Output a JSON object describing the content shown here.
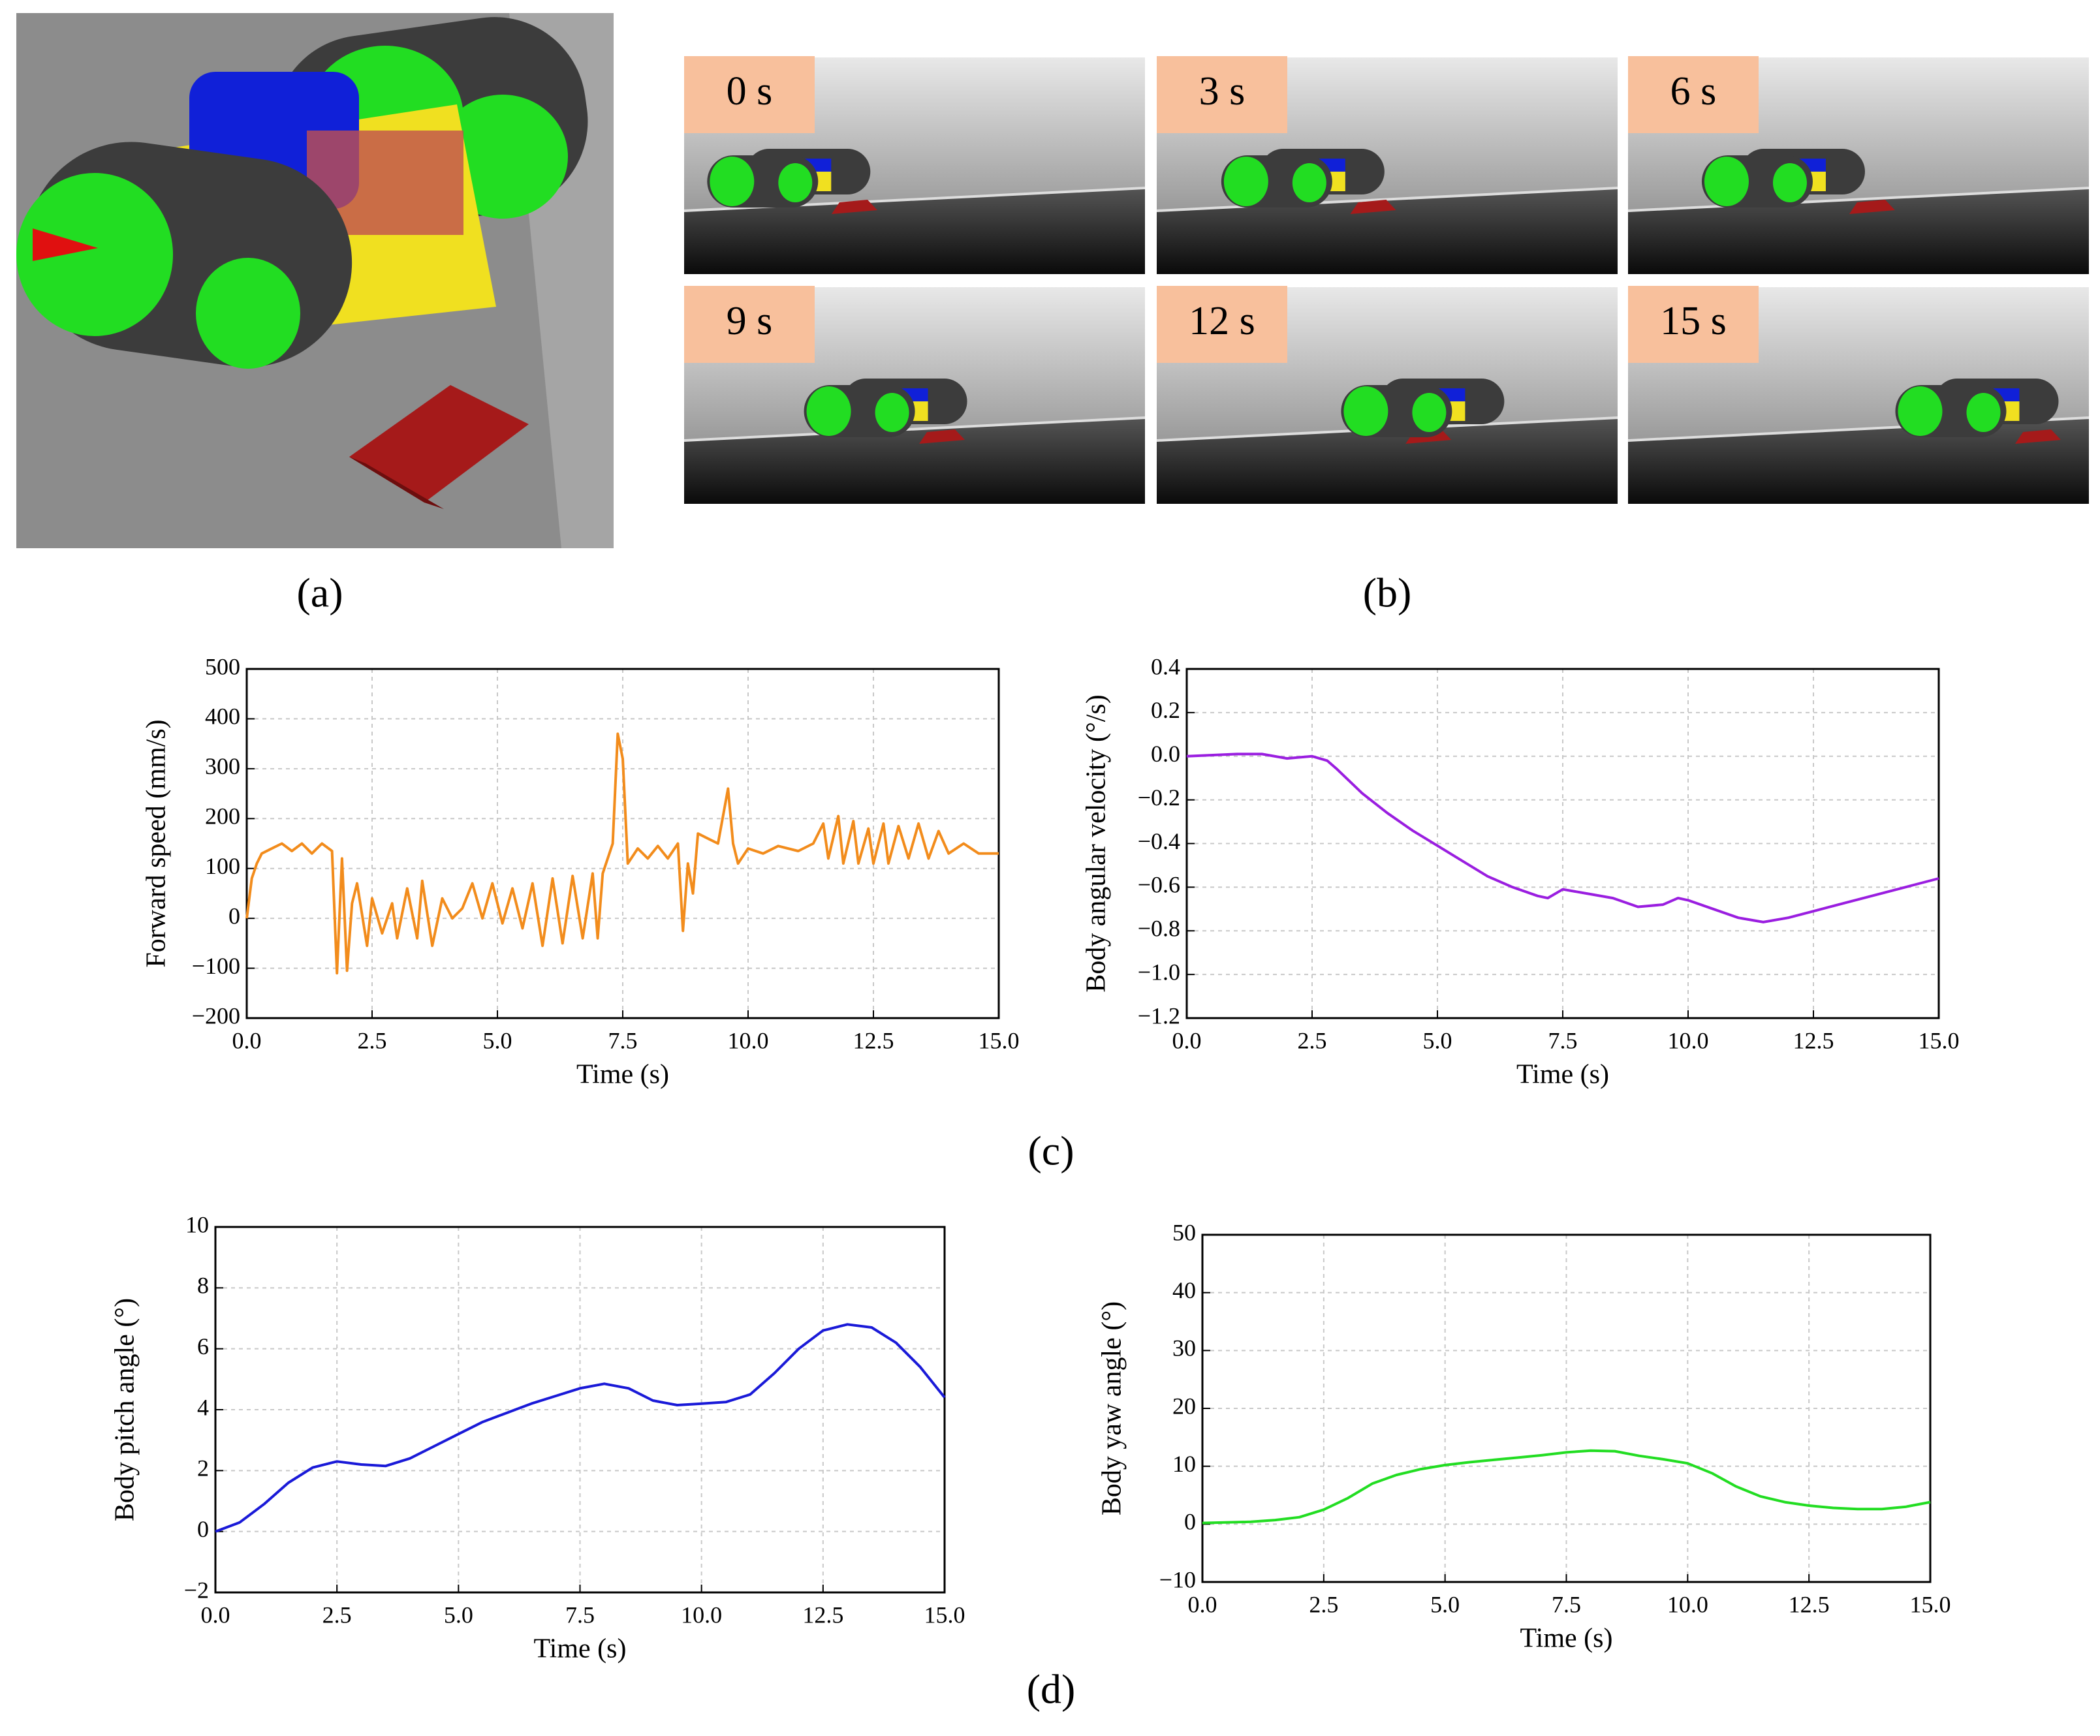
{
  "panel_labels": [
    "(a)",
    "(b)",
    "(c)",
    "(d)"
  ],
  "snapshots": [
    "0 s",
    "3 s",
    "6 s",
    "9 s",
    "12 s",
    "15 s"
  ],
  "chart_data": [
    {
      "type": "line",
      "xlabel": "Time (s)",
      "ylabel": "Forward speed (mm/s)",
      "xlim": [
        0,
        15
      ],
      "xticks": [
        {
          "value": 0,
          "label": "0.0"
        },
        2.5,
        {
          "value": 5,
          "label": "5.0"
        },
        7.5,
        {
          "value": 10,
          "label": "10.0"
        },
        12.5,
        {
          "value": 15,
          "label": "15.0"
        }
      ],
      "ylim": [
        -200,
        500
      ],
      "yticks": [
        {
          "value": -200,
          "label": "−200"
        },
        {
          "value": -100,
          "label": "−100"
        },
        0,
        100,
        200,
        300,
        400,
        500
      ],
      "grid": true,
      "x": [
        0,
        0.1,
        0.2,
        0.3,
        0.5,
        0.7,
        0.9,
        1.1,
        1.3,
        1.5,
        1.7,
        1.8,
        1.9,
        2.0,
        2.1,
        2.2,
        2.4,
        2.5,
        2.7,
        2.9,
        3.0,
        3.2,
        3.4,
        3.5,
        3.7,
        3.9,
        4.1,
        4.3,
        4.5,
        4.7,
        4.9,
        5.1,
        5.3,
        5.5,
        5.7,
        5.9,
        6.1,
        6.3,
        6.5,
        6.7,
        6.9,
        7.0,
        7.1,
        7.3,
        7.4,
        7.5,
        7.6,
        7.8,
        8.0,
        8.2,
        8.4,
        8.6,
        8.7,
        8.8,
        8.9,
        9.0,
        9.2,
        9.4,
        9.6,
        9.7,
        9.8,
        10.0,
        10.3,
        10.6,
        11.0,
        11.3,
        11.5,
        11.6,
        11.8,
        11.9,
        12.1,
        12.2,
        12.4,
        12.5,
        12.7,
        12.8,
        13.0,
        13.2,
        13.4,
        13.6,
        13.8,
        14.0,
        14.3,
        14.6,
        15.0
      ],
      "series": [
        {
          "color": "#f28c1c",
          "values": [
            0,
            80,
            110,
            130,
            140,
            150,
            135,
            150,
            130,
            150,
            135,
            -110,
            120,
            -105,
            30,
            70,
            -55,
            40,
            -30,
            30,
            -40,
            60,
            -40,
            75,
            -55,
            40,
            0,
            20,
            70,
            0,
            70,
            -10,
            60,
            -20,
            70,
            -55,
            80,
            -50,
            85,
            -40,
            90,
            -40,
            90,
            150,
            370,
            320,
            110,
            140,
            120,
            145,
            120,
            150,
            -25,
            110,
            50,
            170,
            160,
            150,
            260,
            150,
            110,
            140,
            130,
            145,
            135,
            150,
            190,
            120,
            205,
            110,
            195,
            110,
            180,
            110,
            190,
            110,
            185,
            120,
            190,
            120,
            175,
            130,
            150,
            130,
            130
          ]
        }
      ]
    },
    {
      "type": "line",
      "xlabel": "Time (s)",
      "ylabel": "Body angular velocity (°/s)",
      "xlim": [
        0,
        15
      ],
      "xticks": [
        {
          "value": 0,
          "label": "0.0"
        },
        2.5,
        {
          "value": 5,
          "label": "5.0"
        },
        7.5,
        {
          "value": 10,
          "label": "10.0"
        },
        12.5,
        {
          "value": 15,
          "label": "15.0"
        }
      ],
      "ylim": [
        -1.2,
        0.4
      ],
      "yticks": [
        {
          "value": -1.2,
          "label": "−1.2"
        },
        {
          "value": -1.0,
          "label": "−1.0"
        },
        {
          "value": -0.8,
          "label": "−0.8"
        },
        {
          "value": -0.6,
          "label": "−0.6"
        },
        {
          "value": -0.4,
          "label": "−0.4"
        },
        {
          "value": -0.2,
          "label": "−0.2"
        },
        {
          "value": 0,
          "label": "0.0"
        },
        0.2,
        0.4
      ],
      "grid": true,
      "x": [
        0,
        1,
        1.5,
        2,
        2.5,
        2.8,
        3,
        3.5,
        4,
        4.5,
        5,
        5.5,
        6,
        6.5,
        7,
        7.2,
        7.5,
        8,
        8.5,
        9,
        9.5,
        9.8,
        10,
        10.5,
        11,
        11.5,
        12,
        12.5,
        13,
        13.5,
        14,
        14.5,
        15
      ],
      "series": [
        {
          "color": "#9a1ee0",
          "values": [
            0,
            0.01,
            0.01,
            -0.01,
            0,
            -0.02,
            -0.06,
            -0.17,
            -0.26,
            -0.34,
            -0.41,
            -0.48,
            -0.55,
            -0.6,
            -0.64,
            -0.65,
            -0.61,
            -0.63,
            -0.65,
            -0.69,
            -0.68,
            -0.65,
            -0.66,
            -0.7,
            -0.74,
            -0.76,
            -0.74,
            -0.71,
            -0.68,
            -0.65,
            -0.62,
            -0.59,
            -0.56
          ]
        }
      ]
    },
    {
      "type": "line",
      "xlabel": "Time (s)",
      "ylabel": "Body pitch angle (°)",
      "xlim": [
        0,
        15
      ],
      "xticks": [
        {
          "value": 0,
          "label": "0.0"
        },
        2.5,
        {
          "value": 5,
          "label": "5.0"
        },
        7.5,
        {
          "value": 10,
          "label": "10.0"
        },
        12.5,
        {
          "value": 15,
          "label": "15.0"
        }
      ],
      "ylim": [
        -2,
        10
      ],
      "yticks": [
        {
          "value": -2,
          "label": "−2"
        },
        0,
        2,
        4,
        6,
        8,
        10
      ],
      "grid": true,
      "x": [
        0,
        0.5,
        1,
        1.5,
        2,
        2.5,
        3,
        3.5,
        4,
        4.5,
        5,
        5.5,
        6,
        6.5,
        7,
        7.5,
        8,
        8.5,
        9,
        9.5,
        10,
        10.5,
        11,
        11.5,
        12,
        12.5,
        13,
        13.5,
        14,
        14.5,
        15
      ],
      "series": [
        {
          "color": "#1a1ad8",
          "values": [
            0,
            0.3,
            0.9,
            1.6,
            2.1,
            2.3,
            2.2,
            2.15,
            2.4,
            2.8,
            3.2,
            3.6,
            3.9,
            4.2,
            4.45,
            4.7,
            4.85,
            4.7,
            4.3,
            4.15,
            4.2,
            4.25,
            4.5,
            5.2,
            6.0,
            6.6,
            6.8,
            6.7,
            6.2,
            5.4,
            4.4
          ]
        }
      ]
    },
    {
      "type": "line",
      "xlabel": "Time (s)",
      "ylabel": "Body yaw angle (°)",
      "xlim": [
        0,
        15
      ],
      "xticks": [
        {
          "value": 0,
          "label": "0.0"
        },
        2.5,
        {
          "value": 5,
          "label": "5.0"
        },
        7.5,
        {
          "value": 10,
          "label": "10.0"
        },
        12.5,
        {
          "value": 15,
          "label": "15.0"
        }
      ],
      "ylim": [
        -10,
        50
      ],
      "yticks": [
        {
          "value": -10,
          "label": "−10"
        },
        0,
        10,
        20,
        30,
        40,
        50
      ],
      "grid": true,
      "x": [
        0,
        1,
        1.5,
        2,
        2.5,
        3,
        3.5,
        4,
        4.5,
        5,
        5.5,
        6,
        6.5,
        7,
        7.5,
        8,
        8.5,
        9,
        9.5,
        10,
        10.5,
        11,
        11.5,
        12,
        12.5,
        13,
        13.5,
        14,
        14.5,
        15
      ],
      "series": [
        {
          "color": "#22dd22",
          "values": [
            0.2,
            0.4,
            0.7,
            1.2,
            2.5,
            4.5,
            7,
            8.5,
            9.5,
            10.2,
            10.7,
            11.1,
            11.5,
            11.9,
            12.4,
            12.7,
            12.6,
            11.8,
            11.2,
            10.5,
            8.8,
            6.5,
            4.8,
            3.8,
            3.2,
            2.8,
            2.6,
            2.6,
            3.0,
            3.8
          ]
        }
      ]
    }
  ]
}
